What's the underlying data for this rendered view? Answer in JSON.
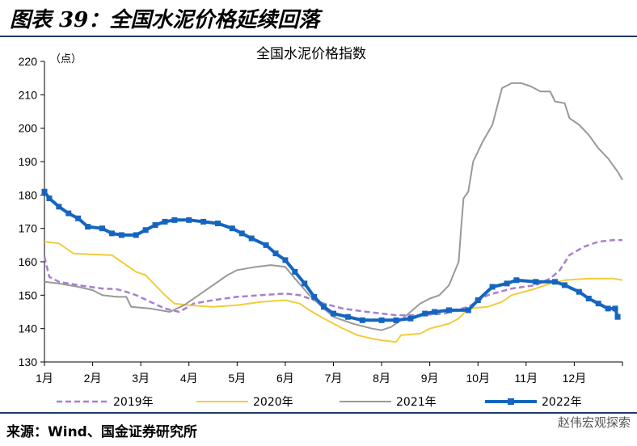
{
  "figure_title": "图表 39：全国水泥价格延续回落",
  "source": "来源：Wind、国金证券研究所",
  "watermark": "赵伟宏观探索",
  "chart_data": {
    "type": "line",
    "title": "全国水泥价格指数",
    "ylabel": "（点）",
    "xlabel": "",
    "x_ticks": [
      "1月",
      "2月",
      "3月",
      "4月",
      "5月",
      "6月",
      "7月",
      "8月",
      "9月",
      "10月",
      "11月",
      "12月"
    ],
    "ylim": [
      130,
      220
    ],
    "y_ticks": [
      130,
      140,
      150,
      160,
      170,
      180,
      190,
      200,
      210,
      220
    ],
    "grid": false,
    "legend_position": "bottom",
    "series": [
      {
        "name": "2019年",
        "color": "#a87fd0",
        "style": "dashed",
        "points": [
          [
            1,
            161.5
          ],
          [
            1.1,
            155.5
          ],
          [
            1.3,
            154
          ],
          [
            1.5,
            153.5
          ],
          [
            1.8,
            152.8
          ],
          [
            2.2,
            152
          ],
          [
            2.5,
            151.8
          ],
          [
            2.7,
            151
          ],
          [
            2.9,
            150
          ],
          [
            3.2,
            148
          ],
          [
            3.5,
            146
          ],
          [
            3.8,
            145
          ],
          [
            4.1,
            147.5
          ],
          [
            4.5,
            148.5
          ],
          [
            5.0,
            149.5
          ],
          [
            5.5,
            150
          ],
          [
            6.0,
            150.5
          ],
          [
            6.3,
            150
          ],
          [
            6.5,
            149
          ],
          [
            6.8,
            147.5
          ],
          [
            7.2,
            146
          ],
          [
            7.7,
            145
          ],
          [
            8.3,
            144
          ],
          [
            8.8,
            144
          ],
          [
            9.3,
            144.5
          ],
          [
            9.8,
            146.5
          ],
          [
            10.2,
            150
          ],
          [
            10.7,
            152
          ],
          [
            11.2,
            153
          ],
          [
            11.5,
            155
          ],
          [
            11.7,
            157.5
          ],
          [
            11.9,
            162
          ],
          [
            12.2,
            164.5
          ],
          [
            12.5,
            166
          ],
          [
            12.8,
            166.5
          ],
          [
            13.0,
            166.5
          ]
        ]
      },
      {
        "name": "2020年",
        "color": "#f2cc3a",
        "style": "solid",
        "points": [
          [
            1,
            166
          ],
          [
            1.3,
            165.5
          ],
          [
            1.6,
            162.5
          ],
          [
            2.0,
            162.2
          ],
          [
            2.4,
            162
          ],
          [
            2.6,
            160
          ],
          [
            2.9,
            157
          ],
          [
            3.1,
            156
          ],
          [
            3.3,
            153
          ],
          [
            3.5,
            150
          ],
          [
            3.7,
            147.5
          ],
          [
            4.0,
            147
          ],
          [
            4.5,
            146.5
          ],
          [
            5.0,
            147
          ],
          [
            5.5,
            148
          ],
          [
            6.0,
            148.5
          ],
          [
            6.3,
            147.5
          ],
          [
            6.5,
            145.5
          ],
          [
            6.8,
            143
          ],
          [
            7.2,
            140
          ],
          [
            7.5,
            138
          ],
          [
            7.8,
            137
          ],
          [
            8.0,
            136.5
          ],
          [
            8.3,
            136
          ],
          [
            8.4,
            138
          ],
          [
            8.8,
            138.5
          ],
          [
            9.0,
            140
          ],
          [
            9.4,
            141.5
          ],
          [
            9.6,
            143
          ],
          [
            9.8,
            146
          ],
          [
            10.2,
            146.5
          ],
          [
            10.5,
            148
          ],
          [
            10.7,
            150
          ],
          [
            11.2,
            152
          ],
          [
            11.5,
            153.5
          ],
          [
            11.8,
            154.5
          ],
          [
            12.3,
            155
          ],
          [
            12.8,
            155
          ],
          [
            13.0,
            154.5
          ]
        ]
      },
      {
        "name": "2021年",
        "color": "#999999",
        "style": "solid",
        "points": [
          [
            1,
            154
          ],
          [
            1.3,
            153.5
          ],
          [
            1.7,
            152.5
          ],
          [
            2.0,
            151.5
          ],
          [
            2.2,
            150
          ],
          [
            2.5,
            149.5
          ],
          [
            2.7,
            149.5
          ],
          [
            2.8,
            146.5
          ],
          [
            3.2,
            146
          ],
          [
            3.6,
            145
          ],
          [
            3.9,
            147
          ],
          [
            4.2,
            150
          ],
          [
            4.5,
            153
          ],
          [
            4.8,
            156
          ],
          [
            5.0,
            157.5
          ],
          [
            5.4,
            158.5
          ],
          [
            5.7,
            159
          ],
          [
            6.0,
            158.5
          ],
          [
            6.2,
            155
          ],
          [
            6.5,
            150
          ],
          [
            6.8,
            146
          ],
          [
            7.0,
            143.5
          ],
          [
            7.4,
            141.5
          ],
          [
            7.8,
            140
          ],
          [
            8.0,
            139.5
          ],
          [
            8.2,
            140.5
          ],
          [
            8.4,
            142.5
          ],
          [
            8.6,
            145
          ],
          [
            8.8,
            147.5
          ],
          [
            9.0,
            149
          ],
          [
            9.2,
            150
          ],
          [
            9.4,
            153
          ],
          [
            9.6,
            160
          ],
          [
            9.65,
            170
          ],
          [
            9.7,
            179
          ],
          [
            9.8,
            181
          ],
          [
            9.9,
            190
          ],
          [
            10.1,
            196
          ],
          [
            10.3,
            201
          ],
          [
            10.5,
            212
          ],
          [
            10.7,
            213.5
          ],
          [
            10.9,
            213.5
          ],
          [
            11.1,
            212.5
          ],
          [
            11.3,
            211
          ],
          [
            11.5,
            211
          ],
          [
            11.6,
            208
          ],
          [
            11.8,
            207.5
          ],
          [
            11.9,
            203
          ],
          [
            12.1,
            201
          ],
          [
            12.3,
            198
          ],
          [
            12.5,
            194
          ],
          [
            12.7,
            191
          ],
          [
            12.9,
            187
          ],
          [
            13.0,
            184.5
          ]
        ]
      },
      {
        "name": "2022年",
        "color": "#1565c0",
        "style": "marker",
        "points": [
          [
            1,
            181
          ],
          [
            1.1,
            179
          ],
          [
            1.3,
            176.5
          ],
          [
            1.5,
            174.5
          ],
          [
            1.7,
            173
          ],
          [
            1.9,
            170.5
          ],
          [
            2.2,
            170
          ],
          [
            2.4,
            168.5
          ],
          [
            2.6,
            168
          ],
          [
            2.9,
            168
          ],
          [
            3.1,
            169.5
          ],
          [
            3.3,
            171
          ],
          [
            3.5,
            172
          ],
          [
            3.7,
            172.5
          ],
          [
            4.0,
            172.5
          ],
          [
            4.3,
            172
          ],
          [
            4.6,
            171.5
          ],
          [
            4.9,
            170
          ],
          [
            5.1,
            168.5
          ],
          [
            5.3,
            167
          ],
          [
            5.6,
            165
          ],
          [
            5.8,
            162.5
          ],
          [
            6.0,
            160.5
          ],
          [
            6.2,
            157
          ],
          [
            6.4,
            153.5
          ],
          [
            6.6,
            149.5
          ],
          [
            6.8,
            146.5
          ],
          [
            7.0,
            144.5
          ],
          [
            7.3,
            143.5
          ],
          [
            7.6,
            142.5
          ],
          [
            8.0,
            142.5
          ],
          [
            8.3,
            142.5
          ],
          [
            8.6,
            143
          ],
          [
            8.9,
            144.5
          ],
          [
            9.1,
            145
          ],
          [
            9.4,
            145.5
          ],
          [
            9.8,
            145.5
          ],
          [
            10.0,
            148.5
          ],
          [
            10.3,
            152.5
          ],
          [
            10.6,
            153.5
          ],
          [
            10.8,
            154.5
          ],
          [
            11.2,
            154
          ],
          [
            11.6,
            154
          ],
          [
            11.8,
            153
          ],
          [
            12.1,
            151
          ],
          [
            12.3,
            149
          ],
          [
            12.5,
            147.5
          ],
          [
            12.7,
            146
          ],
          [
            12.85,
            146
          ],
          [
            12.9,
            143.5
          ]
        ]
      }
    ]
  }
}
